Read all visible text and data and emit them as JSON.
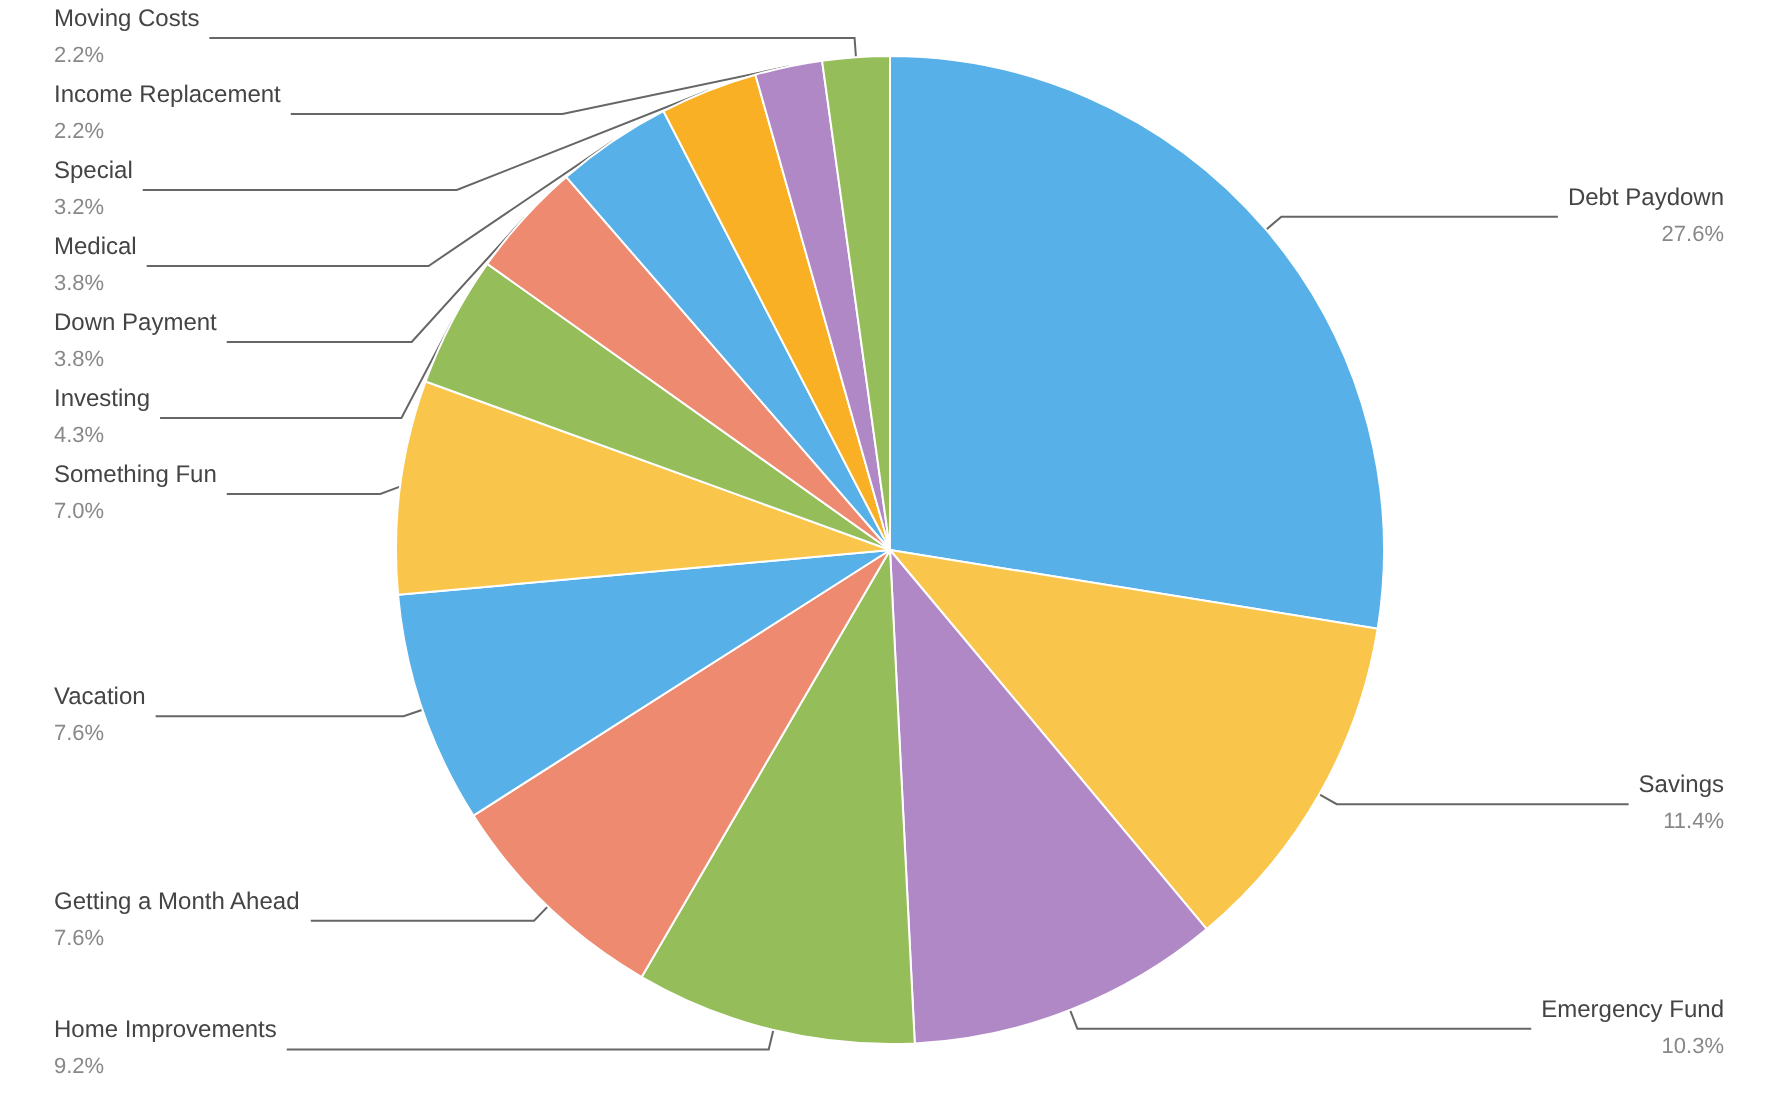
{
  "chart_data": {
    "type": "pie",
    "categories": [
      "Debt Paydown",
      "Savings",
      "Emergency Fund",
      "Home Improvements",
      "Getting a Month Ahead",
      "Vacation",
      "Something Fun",
      "Investing",
      "Down Payment",
      "Medical",
      "Special",
      "Income Replacement",
      "Moving Costs"
    ],
    "values": [
      27.6,
      11.4,
      10.3,
      9.2,
      7.6,
      7.6,
      7.0,
      4.3,
      3.8,
      3.8,
      3.2,
      2.2,
      2.2
    ],
    "value_labels": [
      "27.6%",
      "11.4%",
      "10.3%",
      "9.2%",
      "7.6%",
      "7.6%",
      "7.0%",
      "4.3%",
      "3.8%",
      "3.8%",
      "3.2%",
      "2.2%",
      "2.2%"
    ],
    "colors": [
      "#57b0e8",
      "#fac54b",
      "#b088c6",
      "#95bd5a",
      "#ee8a70",
      "#57b0e8",
      "#fac54b",
      "#95bd5a",
      "#ee8a70",
      "#57b0e8",
      "#f9b024",
      "#b088c6",
      "#95bd5a"
    ],
    "legend": false
  }
}
